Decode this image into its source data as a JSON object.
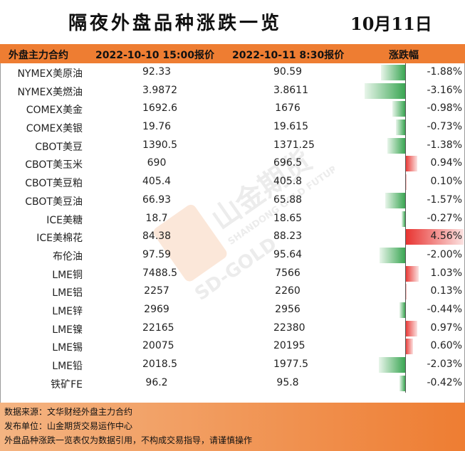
{
  "title": "隔夜外盘品种涨跌一览",
  "date": "10月11日",
  "headers": {
    "name": "外盘主力合约",
    "price1": "2022-10-10 15:00报价",
    "price2": "2022-10-11 8:30报价",
    "change": "涨跌幅"
  },
  "rows": [
    {
      "name": "NYMEX美原油",
      "v1": "92.33",
      "v2": "90.59",
      "pct": "-1.88%",
      "change": -1.88
    },
    {
      "name": "NYMEX美燃油",
      "v1": "3.9872",
      "v2": "3.8611",
      "pct": "-3.16%",
      "change": -3.16
    },
    {
      "name": "COMEX美金",
      "v1": "1692.6",
      "v2": "1676",
      "pct": "-0.98%",
      "change": -0.98
    },
    {
      "name": "COMEX美银",
      "v1": "19.76",
      "v2": "19.615",
      "pct": "-0.73%",
      "change": -0.73
    },
    {
      "name": "CBOT美豆",
      "v1": "1390.5",
      "v2": "1371.25",
      "pct": "-1.38%",
      "change": -1.38
    },
    {
      "name": "CBOT美玉米",
      "v1": "690",
      "v2": "696.5",
      "pct": "0.94%",
      "change": 0.94
    },
    {
      "name": "CBOT美豆粕",
      "v1": "405.4",
      "v2": "405.8",
      "pct": "0.10%",
      "change": 0.1
    },
    {
      "name": "CBOT美豆油",
      "v1": "66.93",
      "v2": "65.88",
      "pct": "-1.57%",
      "change": -1.57
    },
    {
      "name": "ICE美糖",
      "v1": "18.7",
      "v2": "18.65",
      "pct": "-0.27%",
      "change": -0.27
    },
    {
      "name": "ICE美棉花",
      "v1": "84.38",
      "v2": "88.23",
      "pct": "4.56%",
      "change": 4.56
    },
    {
      "name": "布伦油",
      "v1": "97.59",
      "v2": "95.64",
      "pct": "-2.00%",
      "change": -2.0
    },
    {
      "name": "LME铜",
      "v1": "7488.5",
      "v2": "7566",
      "pct": "1.03%",
      "change": 1.03
    },
    {
      "name": "LME铝",
      "v1": "2257",
      "v2": "2260",
      "pct": "0.13%",
      "change": 0.13
    },
    {
      "name": "LME锌",
      "v1": "2969",
      "v2": "2956",
      "pct": "-0.44%",
      "change": -0.44
    },
    {
      "name": "LME镍",
      "v1": "22165",
      "v2": "22380",
      "pct": "0.97%",
      "change": 0.97
    },
    {
      "name": "LME锡",
      "v1": "20075",
      "v2": "20195",
      "pct": "0.60%",
      "change": 0.6
    },
    {
      "name": "LME铅",
      "v1": "2018.5",
      "v2": "1977.5",
      "pct": "-2.03%",
      "change": -2.03
    },
    {
      "name": "铁矿FE",
      "v1": "96.2",
      "v2": "95.8",
      "pct": "-0.42%",
      "change": -0.42
    }
  ],
  "footer": {
    "source": "数据来源：文华财经外盘主力合约",
    "publisher": "发布单位：山金期货交易运作中心",
    "disclaimer": "外盘品种涨跌一览表仅为数据引用，不构成交易指导，请谨慎操作"
  },
  "watermark": {
    "brand": "山金期货",
    "en": "SHANDONG GOLD FUTURES",
    "sub": "SD-GOLD"
  },
  "colors": {
    "header_bg": "#ee7d32",
    "negative_bar": "#3aa653",
    "positive_bar": "#e8322f"
  }
}
